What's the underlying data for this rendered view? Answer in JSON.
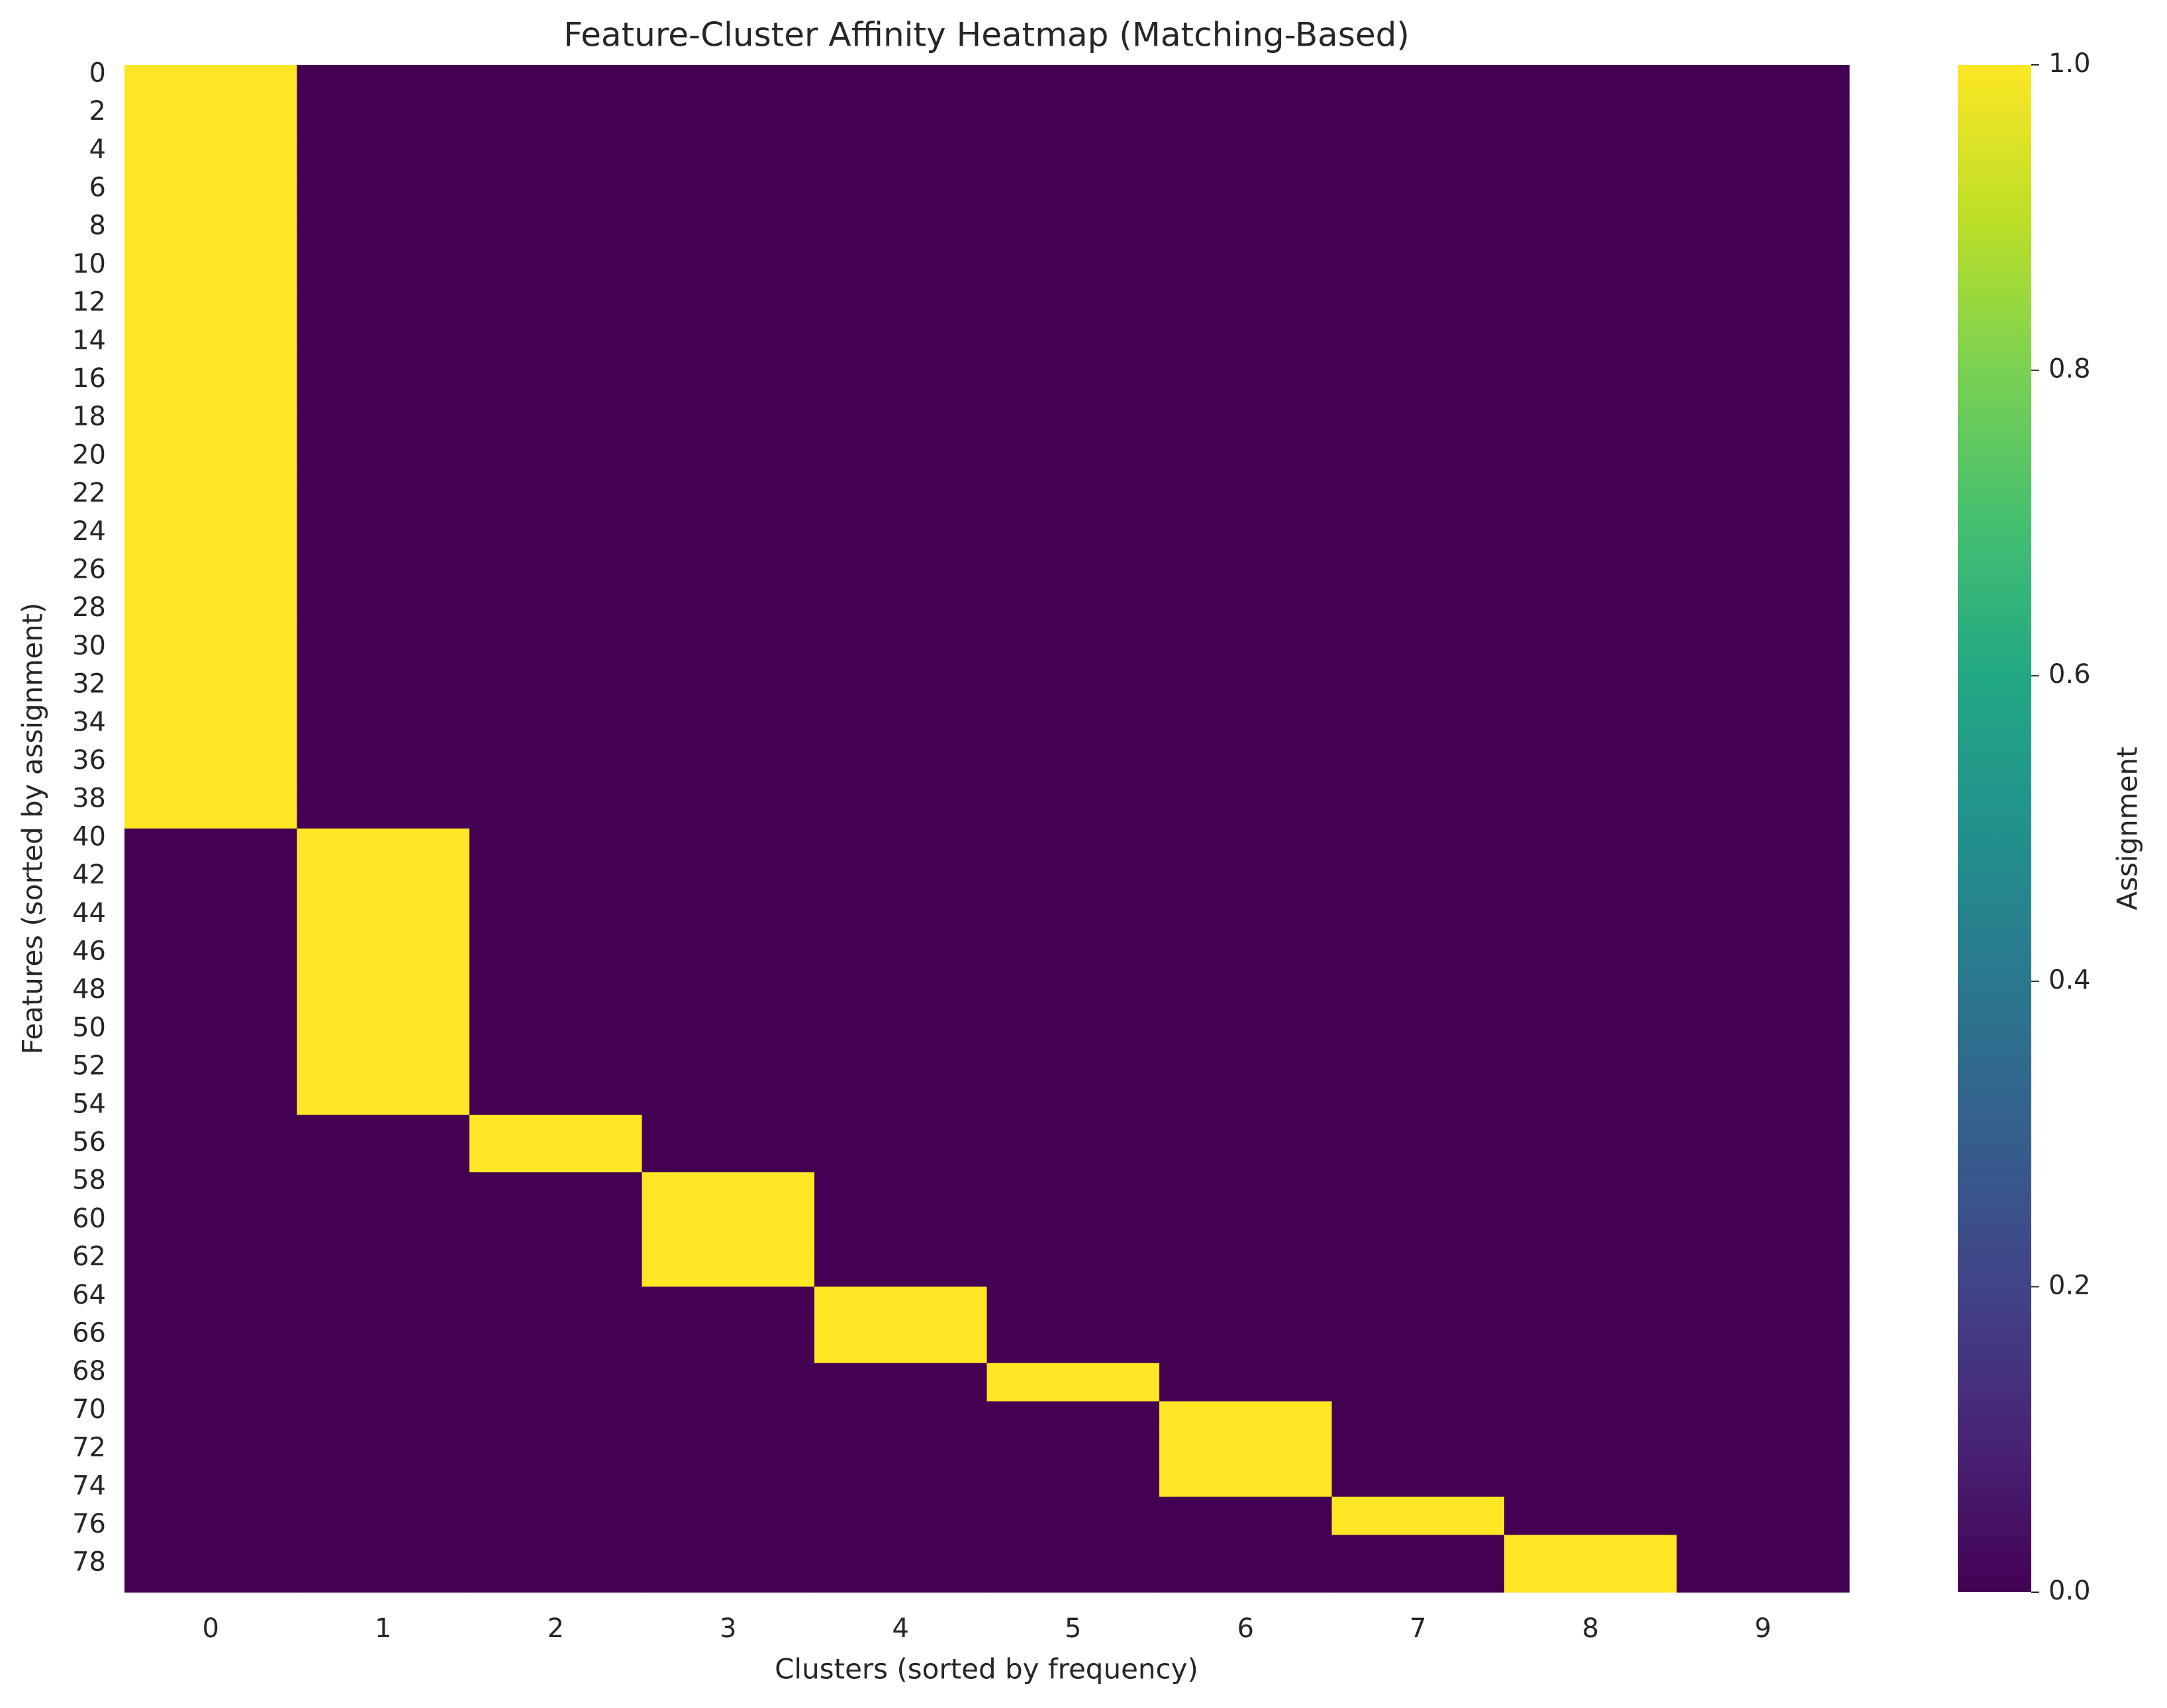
{
  "chart_data": {
    "type": "heatmap",
    "title": "Feature-Cluster Affinity Heatmap (Matching-Based)",
    "x_label": "Clusters (sorted by frequency)",
    "y_label": "Features (sorted by assignment)",
    "colorbar_label": "Assignment",
    "colormap": "viridis",
    "x_categories": [
      "0",
      "1",
      "2",
      "3",
      "4",
      "5",
      "6",
      "7",
      "8",
      "9"
    ],
    "y_categories": [
      "0",
      null,
      "2",
      null,
      "4",
      null,
      "6",
      null,
      "8",
      null,
      "10",
      null,
      "12",
      null,
      "14",
      null,
      "16",
      null,
      "18",
      null,
      "20",
      null,
      "22",
      null,
      "24",
      null,
      "26",
      null,
      "28",
      null,
      "30",
      null,
      "32",
      null,
      "34",
      null,
      "36",
      null,
      "38",
      null,
      "40",
      null,
      "42",
      null,
      "44",
      null,
      "46",
      null,
      "48",
      null,
      "50",
      null,
      "52",
      null,
      "54",
      null,
      "56",
      null,
      "58",
      null,
      "60",
      null,
      "62",
      null,
      "64",
      null,
      "66",
      null,
      "68",
      null,
      "70",
      null,
      "72",
      null,
      "74",
      null,
      "76",
      null,
      "78",
      null
    ],
    "clim": [
      0,
      1
    ],
    "cticks": [
      {
        "value": 0,
        "label": "0.0"
      },
      0.2,
      0.4,
      0.6,
      0.8,
      {
        "value": 1,
        "label": "1.0"
      }
    ],
    "values": [
      [
        1,
        0,
        0,
        0,
        0,
        0,
        0,
        0,
        0,
        0
      ],
      [
        1,
        0,
        0,
        0,
        0,
        0,
        0,
        0,
        0,
        0
      ],
      [
        1,
        0,
        0,
        0,
        0,
        0,
        0,
        0,
        0,
        0
      ],
      [
        1,
        0,
        0,
        0,
        0,
        0,
        0,
        0,
        0,
        0
      ],
      [
        1,
        0,
        0,
        0,
        0,
        0,
        0,
        0,
        0,
        0
      ],
      [
        1,
        0,
        0,
        0,
        0,
        0,
        0,
        0,
        0,
        0
      ],
      [
        1,
        0,
        0,
        0,
        0,
        0,
        0,
        0,
        0,
        0
      ],
      [
        1,
        0,
        0,
        0,
        0,
        0,
        0,
        0,
        0,
        0
      ],
      [
        1,
        0,
        0,
        0,
        0,
        0,
        0,
        0,
        0,
        0
      ],
      [
        1,
        0,
        0,
        0,
        0,
        0,
        0,
        0,
        0,
        0
      ],
      [
        1,
        0,
        0,
        0,
        0,
        0,
        0,
        0,
        0,
        0
      ],
      [
        1,
        0,
        0,
        0,
        0,
        0,
        0,
        0,
        0,
        0
      ],
      [
        1,
        0,
        0,
        0,
        0,
        0,
        0,
        0,
        0,
        0
      ],
      [
        1,
        0,
        0,
        0,
        0,
        0,
        0,
        0,
        0,
        0
      ],
      [
        1,
        0,
        0,
        0,
        0,
        0,
        0,
        0,
        0,
        0
      ],
      [
        1,
        0,
        0,
        0,
        0,
        0,
        0,
        0,
        0,
        0
      ],
      [
        1,
        0,
        0,
        0,
        0,
        0,
        0,
        0,
        0,
        0
      ],
      [
        1,
        0,
        0,
        0,
        0,
        0,
        0,
        0,
        0,
        0
      ],
      [
        1,
        0,
        0,
        0,
        0,
        0,
        0,
        0,
        0,
        0
      ],
      [
        1,
        0,
        0,
        0,
        0,
        0,
        0,
        0,
        0,
        0
      ],
      [
        1,
        0,
        0,
        0,
        0,
        0,
        0,
        0,
        0,
        0
      ],
      [
        1,
        0,
        0,
        0,
        0,
        0,
        0,
        0,
        0,
        0
      ],
      [
        1,
        0,
        0,
        0,
        0,
        0,
        0,
        0,
        0,
        0
      ],
      [
        1,
        0,
        0,
        0,
        0,
        0,
        0,
        0,
        0,
        0
      ],
      [
        1,
        0,
        0,
        0,
        0,
        0,
        0,
        0,
        0,
        0
      ],
      [
        1,
        0,
        0,
        0,
        0,
        0,
        0,
        0,
        0,
        0
      ],
      [
        1,
        0,
        0,
        0,
        0,
        0,
        0,
        0,
        0,
        0
      ],
      [
        1,
        0,
        0,
        0,
        0,
        0,
        0,
        0,
        0,
        0
      ],
      [
        1,
        0,
        0,
        0,
        0,
        0,
        0,
        0,
        0,
        0
      ],
      [
        1,
        0,
        0,
        0,
        0,
        0,
        0,
        0,
        0,
        0
      ],
      [
        1,
        0,
        0,
        0,
        0,
        0,
        0,
        0,
        0,
        0
      ],
      [
        1,
        0,
        0,
        0,
        0,
        0,
        0,
        0,
        0,
        0
      ],
      [
        1,
        0,
        0,
        0,
        0,
        0,
        0,
        0,
        0,
        0
      ],
      [
        1,
        0,
        0,
        0,
        0,
        0,
        0,
        0,
        0,
        0
      ],
      [
        1,
        0,
        0,
        0,
        0,
        0,
        0,
        0,
        0,
        0
      ],
      [
        1,
        0,
        0,
        0,
        0,
        0,
        0,
        0,
        0,
        0
      ],
      [
        1,
        0,
        0,
        0,
        0,
        0,
        0,
        0,
        0,
        0
      ],
      [
        1,
        0,
        0,
        0,
        0,
        0,
        0,
        0,
        0,
        0
      ],
      [
        1,
        0,
        0,
        0,
        0,
        0,
        0,
        0,
        0,
        0
      ],
      [
        1,
        0,
        0,
        0,
        0,
        0,
        0,
        0,
        0,
        0
      ],
      [
        0,
        1,
        0,
        0,
        0,
        0,
        0,
        0,
        0,
        0
      ],
      [
        0,
        1,
        0,
        0,
        0,
        0,
        0,
        0,
        0,
        0
      ],
      [
        0,
        1,
        0,
        0,
        0,
        0,
        0,
        0,
        0,
        0
      ],
      [
        0,
        1,
        0,
        0,
        0,
        0,
        0,
        0,
        0,
        0
      ],
      [
        0,
        1,
        0,
        0,
        0,
        0,
        0,
        0,
        0,
        0
      ],
      [
        0,
        1,
        0,
        0,
        0,
        0,
        0,
        0,
        0,
        0
      ],
      [
        0,
        1,
        0,
        0,
        0,
        0,
        0,
        0,
        0,
        0
      ],
      [
        0,
        1,
        0,
        0,
        0,
        0,
        0,
        0,
        0,
        0
      ],
      [
        0,
        1,
        0,
        0,
        0,
        0,
        0,
        0,
        0,
        0
      ],
      [
        0,
        1,
        0,
        0,
        0,
        0,
        0,
        0,
        0,
        0
      ],
      [
        0,
        1,
        0,
        0,
        0,
        0,
        0,
        0,
        0,
        0
      ],
      [
        0,
        1,
        0,
        0,
        0,
        0,
        0,
        0,
        0,
        0
      ],
      [
        0,
        1,
        0,
        0,
        0,
        0,
        0,
        0,
        0,
        0
      ],
      [
        0,
        1,
        0,
        0,
        0,
        0,
        0,
        0,
        0,
        0
      ],
      [
        0,
        1,
        0,
        0,
        0,
        0,
        0,
        0,
        0,
        0
      ],
      [
        0,
        0,
        1,
        0,
        0,
        0,
        0,
        0,
        0,
        0
      ],
      [
        0,
        0,
        1,
        0,
        0,
        0,
        0,
        0,
        0,
        0
      ],
      [
        0,
        0,
        1,
        0,
        0,
        0,
        0,
        0,
        0,
        0
      ],
      [
        0,
        0,
        0,
        1,
        0,
        0,
        0,
        0,
        0,
        0
      ],
      [
        0,
        0,
        0,
        1,
        0,
        0,
        0,
        0,
        0,
        0
      ],
      [
        0,
        0,
        0,
        1,
        0,
        0,
        0,
        0,
        0,
        0
      ],
      [
        0,
        0,
        0,
        1,
        0,
        0,
        0,
        0,
        0,
        0
      ],
      [
        0,
        0,
        0,
        1,
        0,
        0,
        0,
        0,
        0,
        0
      ],
      [
        0,
        0,
        0,
        1,
        0,
        0,
        0,
        0,
        0,
        0
      ],
      [
        0,
        0,
        0,
        0,
        1,
        0,
        0,
        0,
        0,
        0
      ],
      [
        0,
        0,
        0,
        0,
        1,
        0,
        0,
        0,
        0,
        0
      ],
      [
        0,
        0,
        0,
        0,
        1,
        0,
        0,
        0,
        0,
        0
      ],
      [
        0,
        0,
        0,
        0,
        1,
        0,
        0,
        0,
        0,
        0
      ],
      [
        0,
        0,
        0,
        0,
        0,
        1,
        0,
        0,
        0,
        0
      ],
      [
        0,
        0,
        0,
        0,
        0,
        1,
        0,
        0,
        0,
        0
      ],
      [
        0,
        0,
        0,
        0,
        0,
        0,
        1,
        0,
        0,
        0
      ],
      [
        0,
        0,
        0,
        0,
        0,
        0,
        1,
        0,
        0,
        0
      ],
      [
        0,
        0,
        0,
        0,
        0,
        0,
        1,
        0,
        0,
        0
      ],
      [
        0,
        0,
        0,
        0,
        0,
        0,
        1,
        0,
        0,
        0
      ],
      [
        0,
        0,
        0,
        0,
        0,
        0,
        1,
        0,
        0,
        0
      ],
      [
        0,
        0,
        0,
        0,
        0,
        0,
        0,
        1,
        0,
        0
      ],
      [
        0,
        0,
        0,
        0,
        0,
        0,
        0,
        1,
        0,
        0
      ],
      [
        0,
        0,
        0,
        0,
        0,
        0,
        0,
        0,
        1,
        0
      ],
      [
        0,
        0,
        0,
        0,
        0,
        0,
        0,
        0,
        1,
        0
      ],
      [
        0,
        0,
        0,
        0,
        0,
        0,
        0,
        0,
        1,
        0
      ]
    ]
  }
}
